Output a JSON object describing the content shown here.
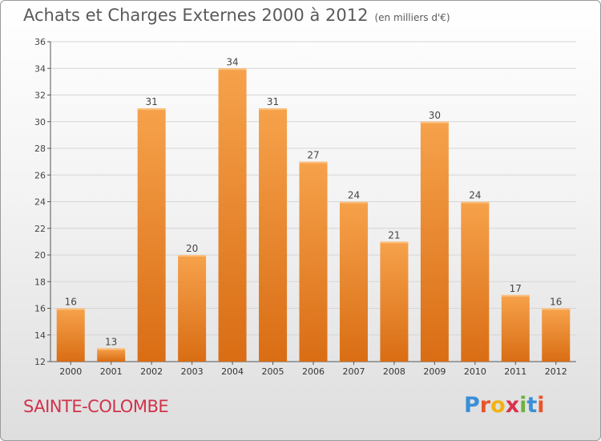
{
  "header": {
    "title": "Achats et Charges Externes 2000 à 2012",
    "unit": "(en milliers d'€)"
  },
  "footer": {
    "commune": "SAINTE-COLOMBE",
    "logo_letters": [
      "P",
      "r",
      "o",
      "x",
      "i",
      "t",
      "i"
    ],
    "logo_colors": [
      "#3a8fd8",
      "#e8552b",
      "#f2b312",
      "#d9334b",
      "#6cb33f",
      "#3a8fd8",
      "#e8552b"
    ]
  },
  "chart_data": {
    "type": "bar",
    "title": "Achats et Charges Externes 2000 à 2012",
    "subtitle": "(en milliers d'€)",
    "categories": [
      "2000",
      "2001",
      "2002",
      "2003",
      "2004",
      "2005",
      "2006",
      "2007",
      "2008",
      "2009",
      "2010",
      "2011",
      "2012"
    ],
    "values": [
      16,
      13,
      31,
      20,
      34,
      31,
      27,
      24,
      21,
      30,
      24,
      17,
      16
    ],
    "ylim": [
      12,
      36
    ],
    "yticks": [
      12,
      14,
      16,
      18,
      20,
      22,
      24,
      26,
      28,
      30,
      32,
      34,
      36
    ],
    "grid": true,
    "bar_color": "#f28f2e"
  }
}
